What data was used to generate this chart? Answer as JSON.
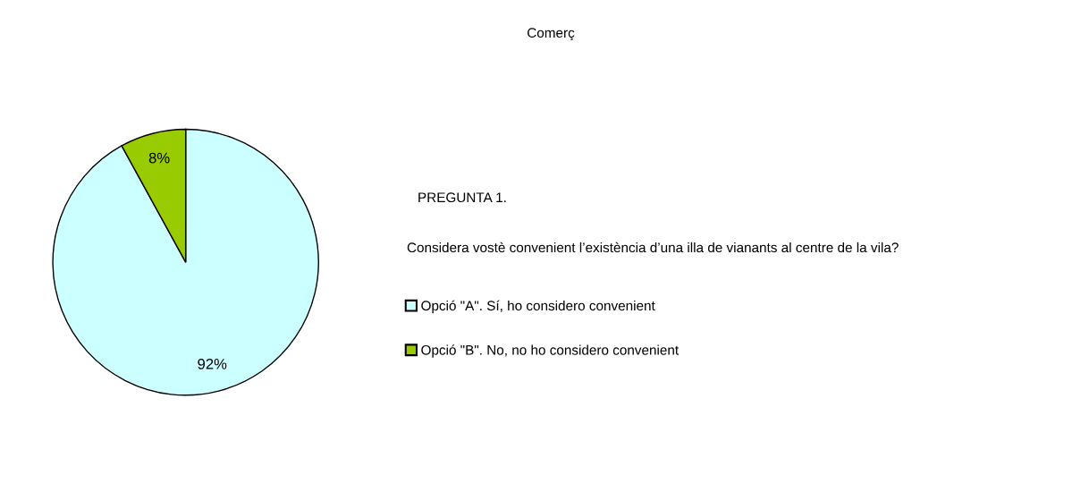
{
  "chart_data": {
    "type": "pie",
    "title": "Comerç",
    "annotations": [
      "PREGUNTA 1.",
      "Considera vostè convenient l’existència d’una illa de vianants al centre de la vila?"
    ],
    "categories": [
      "Opció \"A\". Sí, ho considero convenient",
      "Opció \"B\". No, no ho considero convenient"
    ],
    "values": [
      92,
      8
    ],
    "colors": [
      "#ccffff",
      "#99cc00"
    ],
    "value_labels": [
      "92%",
      "8%"
    ],
    "legend": "right"
  }
}
